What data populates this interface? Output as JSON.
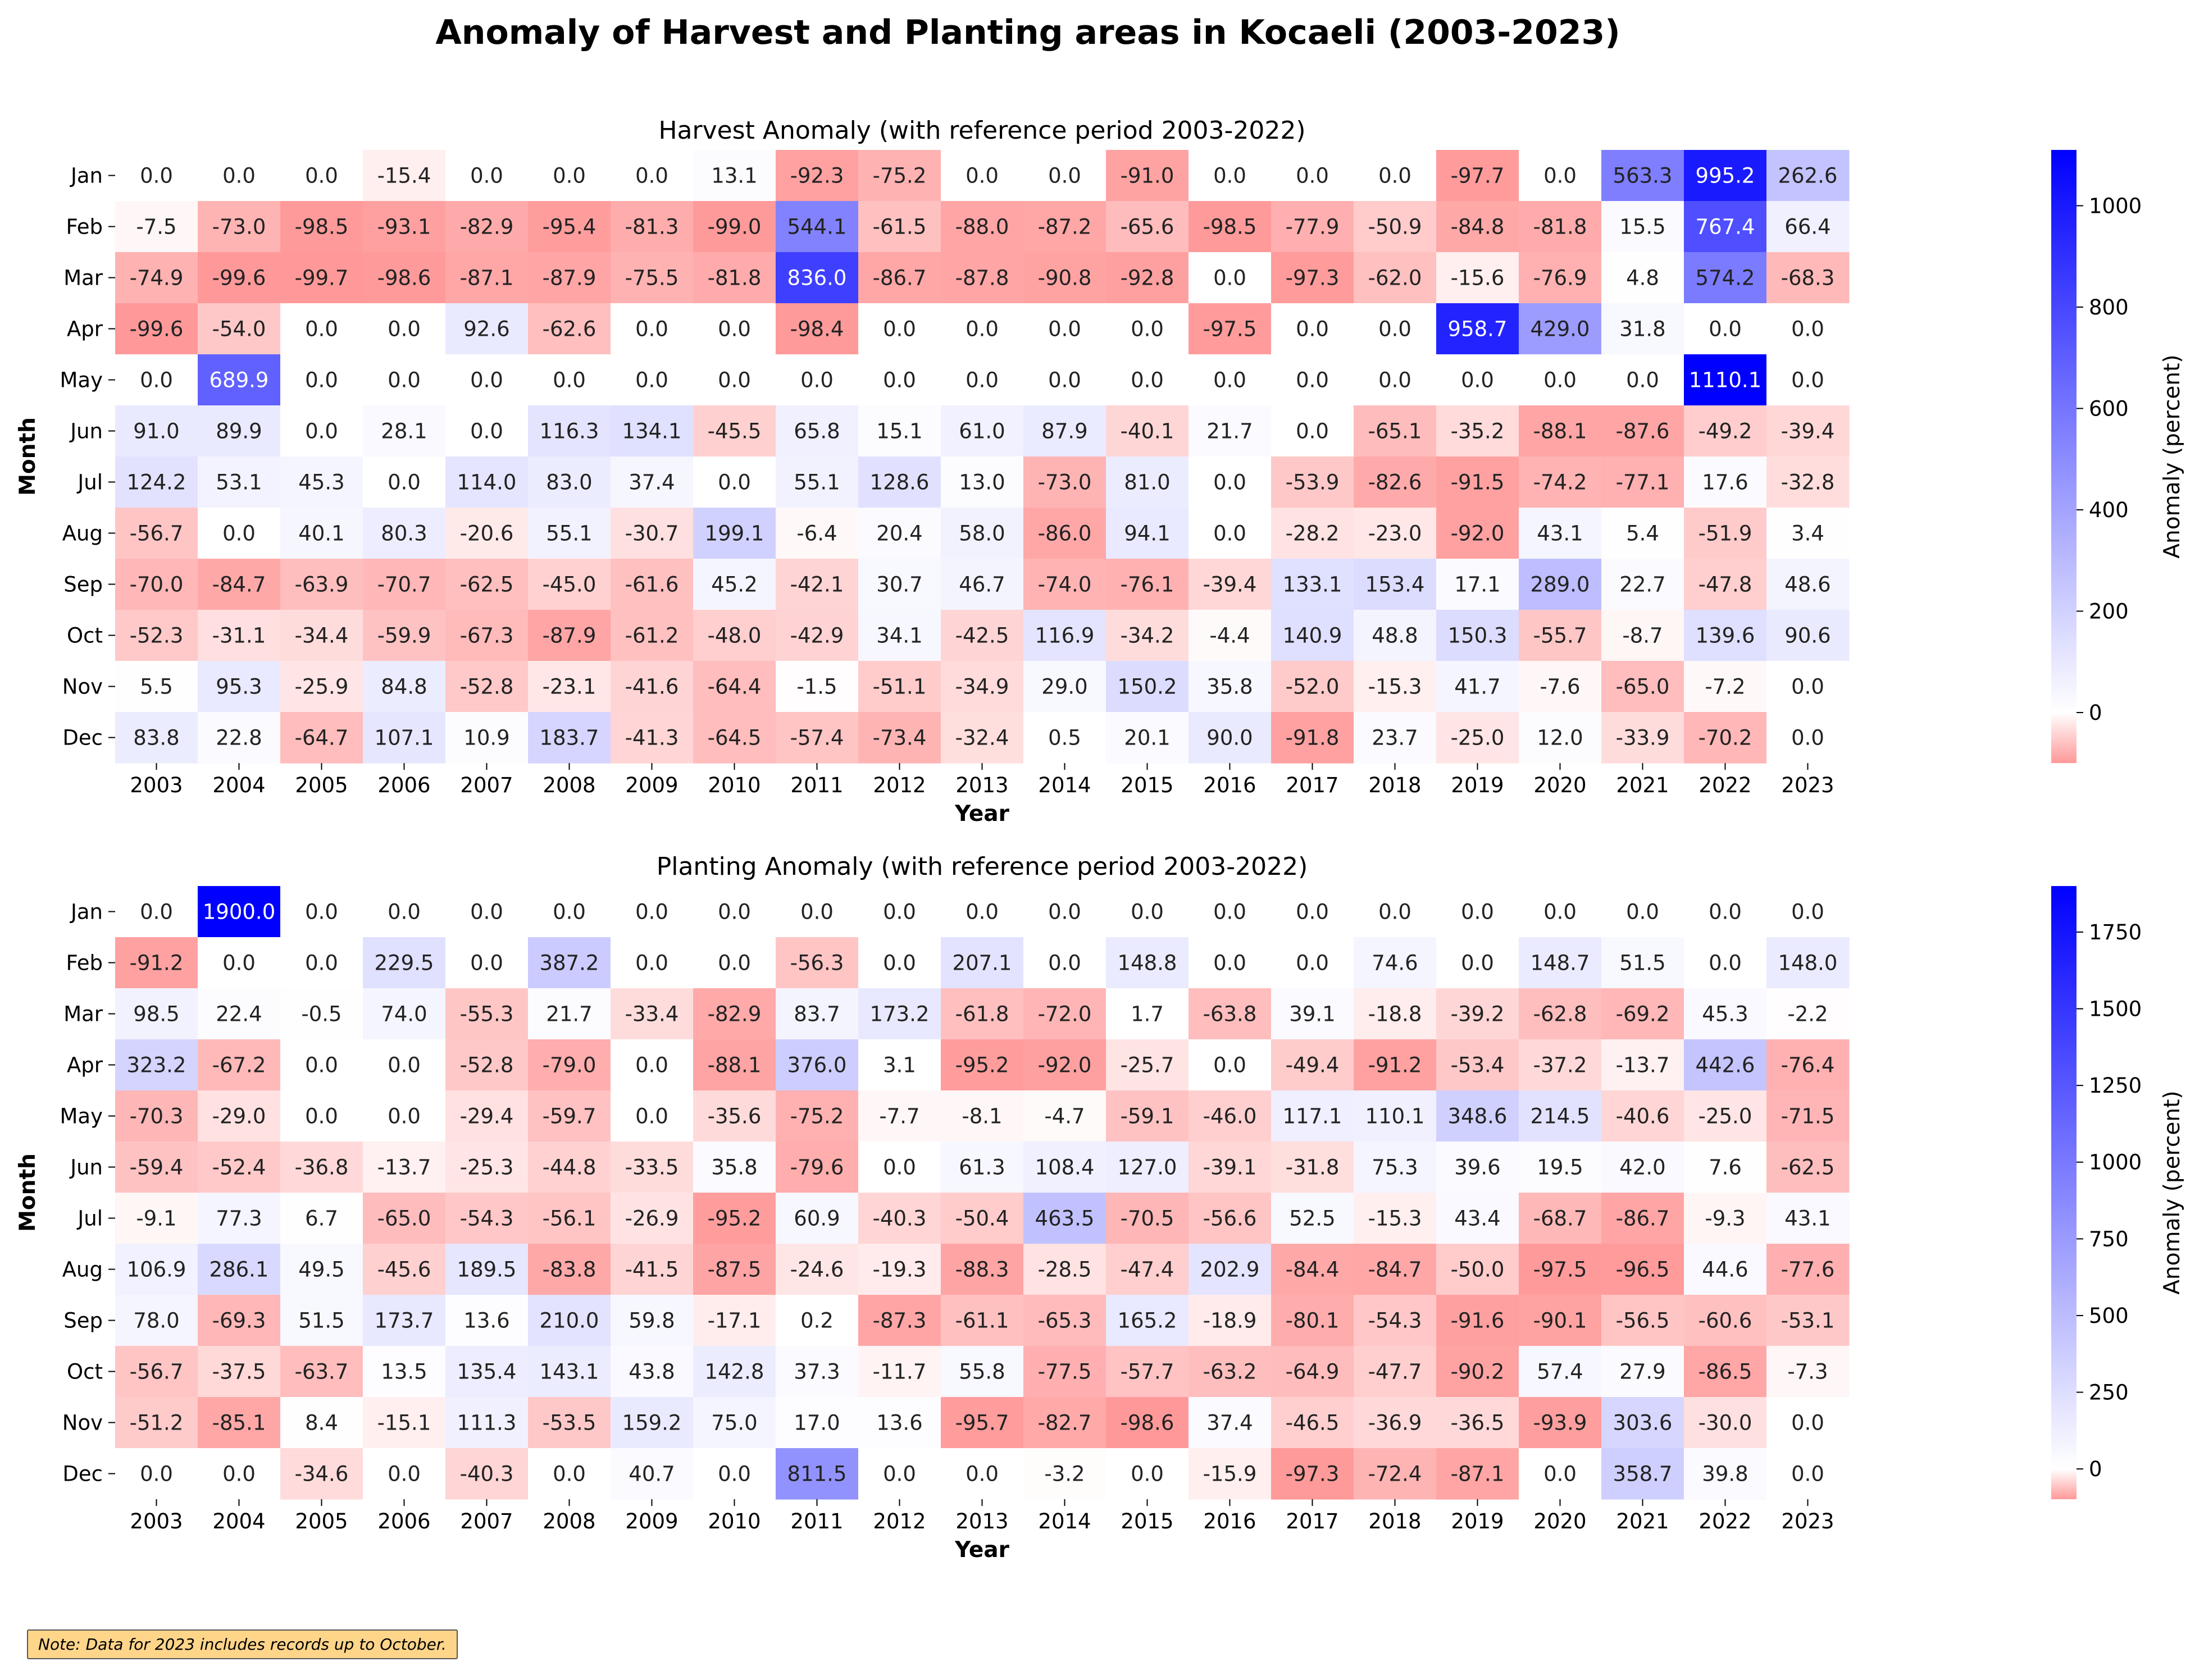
{
  "title": "Anomaly of Harvest and Planting areas in Kocaeli (2003-2023)",
  "note": "Note: Data for 2023 includes records up to October.",
  "colors": {
    "negative": "#ff9999",
    "zero": "#ffffff",
    "positive": "#0000ff"
  },
  "chart_data": [
    {
      "type": "heatmap",
      "title": "Harvest Anomaly (with reference period 2003-2022)",
      "xlabel": "Year",
      "ylabel": "Month",
      "colorbar_label": "Anomaly (percent)",
      "colorbar_ticks": [
        0,
        200,
        400,
        600,
        800,
        1000
      ],
      "vmin": -99.7,
      "vmax": 1110.1,
      "x": [
        "2003",
        "2004",
        "2005",
        "2006",
        "2007",
        "2008",
        "2009",
        "2010",
        "2011",
        "2012",
        "2013",
        "2014",
        "2015",
        "2016",
        "2017",
        "2018",
        "2019",
        "2020",
        "2021",
        "2022",
        "2023"
      ],
      "y": [
        "Jan",
        "Feb",
        "Mar",
        "Apr",
        "May",
        "Jun",
        "Jul",
        "Aug",
        "Sep",
        "Oct",
        "Nov",
        "Dec"
      ],
      "values": [
        [
          0.0,
          0.0,
          0.0,
          -15.4,
          0.0,
          0.0,
          0.0,
          13.1,
          -92.3,
          -75.2,
          0.0,
          0.0,
          -91.0,
          0.0,
          0.0,
          0.0,
          -97.7,
          0.0,
          563.3,
          995.2,
          262.6
        ],
        [
          -7.5,
          -73.0,
          -98.5,
          -93.1,
          -82.9,
          -95.4,
          -81.3,
          -99.0,
          544.1,
          -61.5,
          -88.0,
          -87.2,
          -65.6,
          -98.5,
          -77.9,
          -50.9,
          -84.8,
          -81.8,
          15.5,
          767.4,
          66.4
        ],
        [
          -74.9,
          -99.6,
          -99.7,
          -98.6,
          -87.1,
          -87.9,
          -75.5,
          -81.8,
          836.0,
          -86.7,
          -87.8,
          -90.8,
          -92.8,
          0.0,
          -97.3,
          -62.0,
          -15.6,
          -76.9,
          4.8,
          574.2,
          -68.3
        ],
        [
          -99.6,
          -54.0,
          0.0,
          0.0,
          92.6,
          -62.6,
          0.0,
          0.0,
          -98.4,
          0.0,
          0.0,
          0.0,
          0.0,
          -97.5,
          0.0,
          0.0,
          958.7,
          429.0,
          31.8,
          0.0,
          0.0
        ],
        [
          0.0,
          689.9,
          0.0,
          0.0,
          0.0,
          0.0,
          0.0,
          0.0,
          0.0,
          0.0,
          0.0,
          0.0,
          0.0,
          0.0,
          0.0,
          0.0,
          0.0,
          0.0,
          0.0,
          1110.1,
          0.0
        ],
        [
          91.0,
          89.9,
          0.0,
          28.1,
          0.0,
          116.3,
          134.1,
          -45.5,
          65.8,
          15.1,
          61.0,
          87.9,
          -40.1,
          21.7,
          0.0,
          -65.1,
          -35.2,
          -88.1,
          -87.6,
          -49.2,
          -39.4
        ],
        [
          124.2,
          53.1,
          45.3,
          0.0,
          114.0,
          83.0,
          37.4,
          0.0,
          55.1,
          128.6,
          13.0,
          -73.0,
          81.0,
          0.0,
          -53.9,
          -82.6,
          -91.5,
          -74.2,
          -77.1,
          17.6,
          -32.8
        ],
        [
          -56.7,
          0.0,
          40.1,
          80.3,
          -20.6,
          55.1,
          -30.7,
          199.1,
          -6.4,
          20.4,
          58.0,
          -86.0,
          94.1,
          0.0,
          -28.2,
          -23.0,
          -92.0,
          43.1,
          5.4,
          -51.9,
          3.4
        ],
        [
          -70.0,
          -84.7,
          -63.9,
          -70.7,
          -62.5,
          -45.0,
          -61.6,
          45.2,
          -42.1,
          30.7,
          46.7,
          -74.0,
          -76.1,
          -39.4,
          133.1,
          153.4,
          17.1,
          289.0,
          22.7,
          -47.8,
          48.6
        ],
        [
          -52.3,
          -31.1,
          -34.4,
          -59.9,
          -67.3,
          -87.9,
          -61.2,
          -48.0,
          -42.9,
          34.1,
          -42.5,
          116.9,
          -34.2,
          -4.4,
          140.9,
          48.8,
          150.3,
          -55.7,
          -8.7,
          139.6,
          90.6
        ],
        [
          5.5,
          95.3,
          -25.9,
          84.8,
          -52.8,
          -23.1,
          -41.6,
          -64.4,
          -1.5,
          -51.1,
          -34.9,
          29.0,
          150.2,
          35.8,
          -52.0,
          -15.3,
          41.7,
          -7.6,
          -65.0,
          -7.2,
          0.0
        ],
        [
          83.8,
          22.8,
          -64.7,
          107.1,
          10.9,
          183.7,
          -41.3,
          -64.5,
          -57.4,
          -73.4,
          -32.4,
          0.5,
          20.1,
          90.0,
          -91.8,
          23.7,
          -25.0,
          12.0,
          -33.9,
          -70.2,
          0.0
        ]
      ]
    },
    {
      "type": "heatmap",
      "title": "Planting Anomaly (with reference period 2003-2022)",
      "xlabel": "Year",
      "ylabel": "Month",
      "colorbar_label": "Anomaly (percent)",
      "colorbar_ticks": [
        0,
        250,
        500,
        750,
        1000,
        1250,
        1500,
        1750
      ],
      "vmin": -98.6,
      "vmax": 1900.0,
      "x": [
        "2003",
        "2004",
        "2005",
        "2006",
        "2007",
        "2008",
        "2009",
        "2010",
        "2011",
        "2012",
        "2013",
        "2014",
        "2015",
        "2016",
        "2017",
        "2018",
        "2019",
        "2020",
        "2021",
        "2022",
        "2023"
      ],
      "y": [
        "Jan",
        "Feb",
        "Mar",
        "Apr",
        "May",
        "Jun",
        "Jul",
        "Aug",
        "Sep",
        "Oct",
        "Nov",
        "Dec"
      ],
      "values": [
        [
          0.0,
          1900.0,
          0.0,
          0.0,
          0.0,
          0.0,
          0.0,
          0.0,
          0.0,
          0.0,
          0.0,
          0.0,
          0.0,
          0.0,
          0.0,
          0.0,
          0.0,
          0.0,
          0.0,
          0.0,
          0.0
        ],
        [
          -91.2,
          0.0,
          0.0,
          229.5,
          0.0,
          387.2,
          0.0,
          0.0,
          -56.3,
          0.0,
          207.1,
          0.0,
          148.8,
          0.0,
          0.0,
          74.6,
          0.0,
          148.7,
          51.5,
          0.0,
          148.0
        ],
        [
          98.5,
          22.4,
          -0.5,
          74.0,
          -55.3,
          21.7,
          -33.4,
          -82.9,
          83.7,
          173.2,
          -61.8,
          -72.0,
          1.7,
          -63.8,
          39.1,
          -18.8,
          -39.2,
          -62.8,
          -69.2,
          45.3,
          -2.2
        ],
        [
          323.2,
          -67.2,
          0.0,
          0.0,
          -52.8,
          -79.0,
          0.0,
          -88.1,
          376.0,
          3.1,
          -95.2,
          -92.0,
          -25.7,
          0.0,
          -49.4,
          -91.2,
          -53.4,
          -37.2,
          -13.7,
          442.6,
          -76.4
        ],
        [
          -70.3,
          -29.0,
          0.0,
          0.0,
          -29.4,
          -59.7,
          0.0,
          -35.6,
          -75.2,
          -7.7,
          -8.1,
          -4.7,
          -59.1,
          -46.0,
          117.1,
          110.1,
          348.6,
          214.5,
          -40.6,
          -25.0,
          -71.5
        ],
        [
          -59.4,
          -52.4,
          -36.8,
          -13.7,
          -25.3,
          -44.8,
          -33.5,
          35.8,
          -79.6,
          0.0,
          61.3,
          108.4,
          127.0,
          -39.1,
          -31.8,
          75.3,
          39.6,
          19.5,
          42.0,
          7.6,
          -62.5
        ],
        [
          -9.1,
          77.3,
          6.7,
          -65.0,
          -54.3,
          -56.1,
          -26.9,
          -95.2,
          60.9,
          -40.3,
          -50.4,
          463.5,
          -70.5,
          -56.6,
          52.5,
          -15.3,
          43.4,
          -68.7,
          -86.7,
          -9.3,
          43.1
        ],
        [
          106.9,
          286.1,
          49.5,
          -45.6,
          189.5,
          -83.8,
          -41.5,
          -87.5,
          -24.6,
          -19.3,
          -88.3,
          -28.5,
          -47.4,
          202.9,
          -84.4,
          -84.7,
          -50.0,
          -97.5,
          -96.5,
          44.6,
          -77.6
        ],
        [
          78.0,
          -69.3,
          51.5,
          173.7,
          13.6,
          210.0,
          59.8,
          -17.1,
          0.2,
          -87.3,
          -61.1,
          -65.3,
          165.2,
          -18.9,
          -80.1,
          -54.3,
          -91.6,
          -90.1,
          -56.5,
          -60.6,
          -53.1
        ],
        [
          -56.7,
          -37.5,
          -63.7,
          13.5,
          135.4,
          143.1,
          43.8,
          142.8,
          37.3,
          -11.7,
          55.8,
          -77.5,
          -57.7,
          -63.2,
          -64.9,
          -47.7,
          -90.2,
          57.4,
          27.9,
          -86.5,
          -7.3
        ],
        [
          -51.2,
          -85.1,
          8.4,
          -15.1,
          111.3,
          -53.5,
          159.2,
          75.0,
          17.0,
          13.6,
          -95.7,
          -82.7,
          -98.6,
          37.4,
          -46.5,
          -36.9,
          -36.5,
          -93.9,
          303.6,
          -30.0,
          0.0
        ],
        [
          0.0,
          0.0,
          -34.6,
          0.0,
          -40.3,
          0.0,
          40.7,
          0.0,
          811.5,
          0.0,
          0.0,
          -3.2,
          0.0,
          -15.9,
          -97.3,
          -72.4,
          -87.1,
          0.0,
          358.7,
          39.8,
          0.0
        ]
      ]
    }
  ]
}
